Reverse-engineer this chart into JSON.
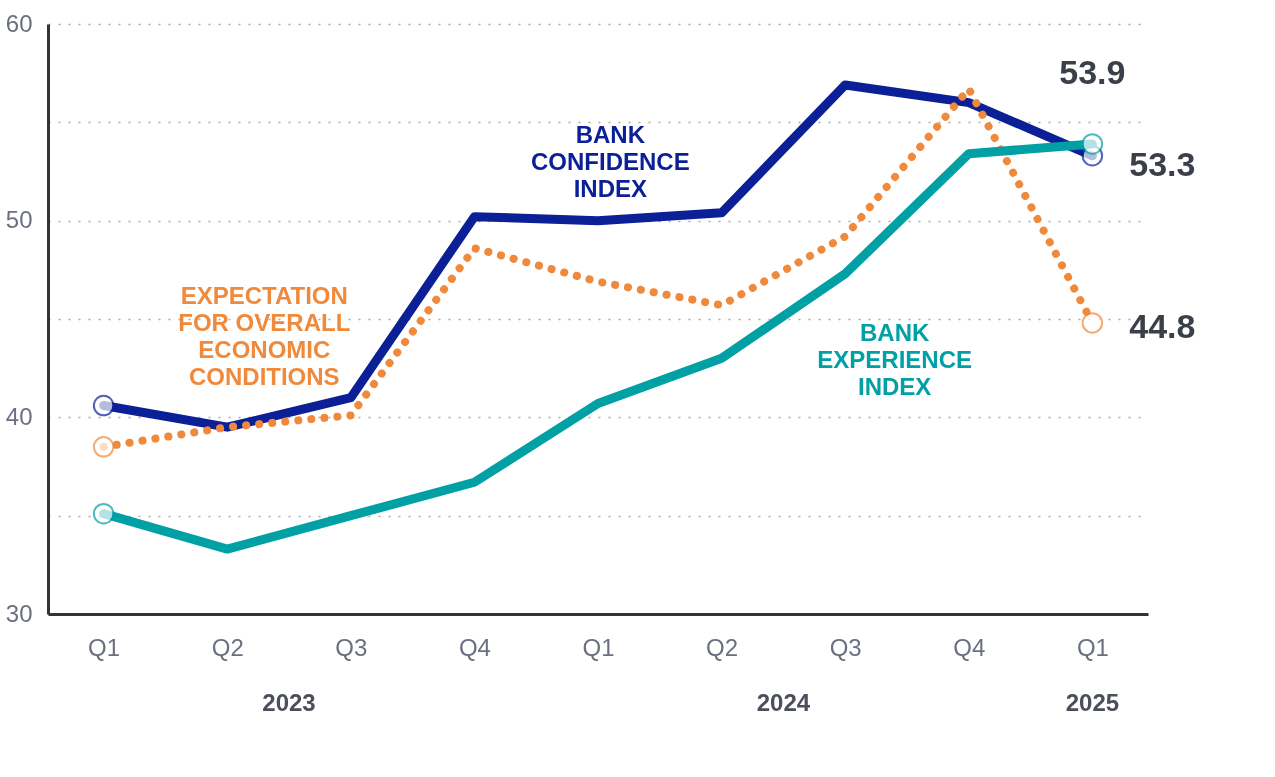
{
  "chart_data": {
    "type": "line",
    "categories": [
      "Q1",
      "Q2",
      "Q3",
      "Q4",
      "Q1",
      "Q2",
      "Q3",
      "Q4",
      "Q1"
    ],
    "series": [
      {
        "name": "BANK CONFIDENCE INDEX",
        "color": "#0b1f96",
        "line_style": "solid",
        "values": [
          40.6,
          39.5,
          41.0,
          50.2,
          50.0,
          50.4,
          56.9,
          56.0,
          53.3
        ],
        "value_labels": [
          null,
          null,
          null,
          null,
          null,
          null,
          null,
          null,
          "53.3"
        ]
      },
      {
        "name": "EXPECTATION FOR OVERALL ECONOMIC CONDITIONS",
        "color": "#ef8a3c",
        "line_style": "dotted",
        "values": [
          38.5,
          39.5,
          40.1,
          48.6,
          46.9,
          45.7,
          49.2,
          56.7,
          44.8
        ],
        "value_labels": [
          null,
          null,
          null,
          null,
          null,
          null,
          null,
          null,
          "44.8"
        ]
      },
      {
        "name": "BANK EXPERIENCE INDEX",
        "color": "#00a0a5",
        "line_style": "solid",
        "values": [
          35.1,
          33.3,
          35.0,
          36.7,
          40.7,
          43.0,
          47.3,
          53.4,
          53.9
        ],
        "value_labels": [
          null,
          null,
          null,
          null,
          null,
          null,
          null,
          null,
          "53.9"
        ]
      }
    ],
    "ylim": [
      30,
      60
    ],
    "yticks": [
      30,
      {
        "value": 35,
        "label": null
      },
      40,
      {
        "value": 45,
        "label": null
      },
      50,
      {
        "value": 55,
        "label": null
      },
      60
    ],
    "grid": "y",
    "annotations": [
      "2023",
      "2024",
      "2025"
    ]
  }
}
